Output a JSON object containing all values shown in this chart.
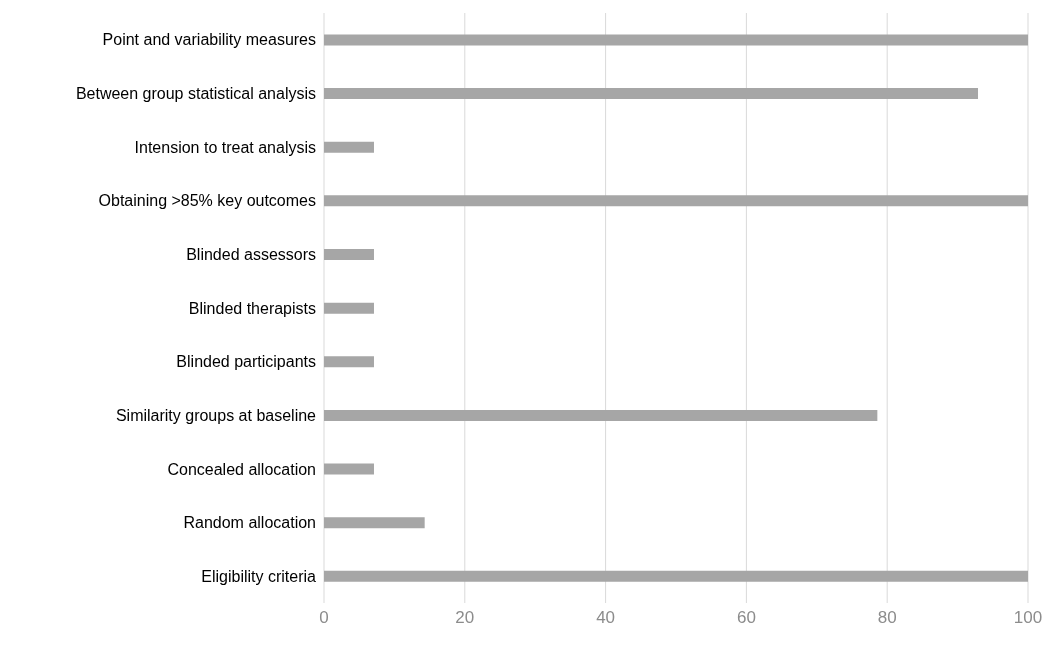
{
  "chart_data": {
    "type": "bar",
    "orientation": "horizontal",
    "categories": [
      "Point and variability measures",
      "Between group statistical analysis",
      "Intension to treat analysis",
      "Obtaining >85% key outcomes",
      "Blinded assessors",
      "Blinded therapists",
      "Blinded participants",
      "Similarity groups at baseline",
      "Concealed allocation",
      "Random allocation",
      "Eligibility criteria"
    ],
    "values": [
      100,
      92.9,
      7.1,
      100,
      7.1,
      7.1,
      7.1,
      78.6,
      7.1,
      14.3,
      100
    ],
    "color": "#a6a6a6",
    "xlim": [
      0,
      100
    ],
    "xticks": [
      0,
      20,
      40,
      60,
      80,
      100
    ],
    "grid": "x"
  }
}
